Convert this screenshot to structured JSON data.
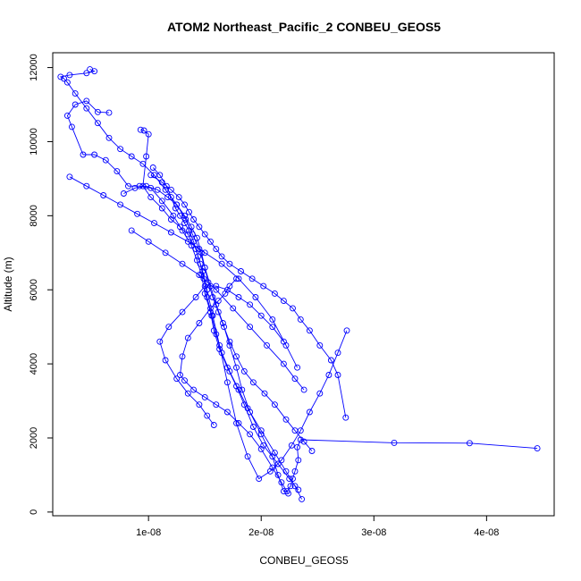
{
  "chart_data": {
    "type": "scatter",
    "title": "ATOM2 Northeast_Pacific_2 CONBEU_GEOS5",
    "xlabel": "CONBEU_GEOS5",
    "ylabel": "Altitude (m)",
    "xlim": [
      1.5e-09,
      4.6e-08
    ],
    "ylim": [
      -100,
      12400
    ],
    "x_ticks": [
      {
        "value": 1e-08,
        "label": "1e-08"
      },
      {
        "value": 2e-08,
        "label": "2e-08"
      },
      {
        "value": 3e-08,
        "label": "3e-08"
      },
      {
        "value": 4e-08,
        "label": "4e-08"
      }
    ],
    "y_ticks": [
      {
        "value": 0,
        "label": "0"
      },
      {
        "value": 2000,
        "label": "2000"
      },
      {
        "value": 4000,
        "label": "4000"
      },
      {
        "value": 6000,
        "label": "6000"
      },
      {
        "value": 8000,
        "label": "8000"
      },
      {
        "value": 10000,
        "label": "10000"
      },
      {
        "value": 12000,
        "label": "12000"
      }
    ],
    "marker": "open-circle",
    "connected": true,
    "grid": false,
    "color": "#0000ff",
    "series": [
      {
        "x": [
          4.45e-08,
          3.85e-08,
          3.18e-08,
          2.35e-08,
          2.32e-08,
          2.33e-08,
          2.3e-08,
          2.28e-08,
          2.26e-08,
          2.23e-08,
          2.2e-08,
          2.15e-08,
          2.1e-08,
          2e-08,
          1.9e-08,
          1.83e-08,
          1.78e-08,
          1.72e-08,
          1.66e-08,
          1.6e-08,
          1.55e-08,
          1.5e-08,
          1.45e-08,
          1.39e-08,
          1.33e-08,
          1.25e-08,
          1.15e-08,
          1.05e-08,
          9.5e-09,
          8.5e-09,
          7.5e-09,
          6.5e-09,
          5.5e-09,
          4.5e-09,
          3.5e-09,
          2.8e-09,
          2.5e-09,
          2.2e-09,
          3e-09,
          4.5e-09,
          5.2e-09,
          4.8e-09
        ],
        "y": [
          1720,
          1860,
          1870,
          1950,
          1750,
          1400,
          1100,
          900,
          700,
          560,
          560,
          1000,
          1500,
          2100,
          2700,
          3300,
          3900,
          4500,
          5100,
          5600,
          6100,
          6600,
          7100,
          7500,
          7900,
          8300,
          8700,
          9100,
          9400,
          9600,
          9800,
          10100,
          10500,
          10900,
          11300,
          11600,
          11700,
          11750,
          11800,
          11850,
          11900,
          11950
        ]
      },
      {
        "x": [
          2.33e-08,
          2.25e-08,
          2.15e-08,
          2.02e-08,
          1.93e-08,
          1.85e-08,
          1.78e-08,
          1.7e-08,
          1.63e-08,
          1.58e-08,
          1.55e-08,
          1.5e-08,
          1.47e-08,
          1.43e-08,
          1.38e-08,
          1.3e-08,
          1.22e-08,
          1.12e-08,
          1.02e-08,
          9.2e-09,
          8.2e-09,
          7.2e-09,
          6.2e-09,
          5.2e-09,
          4.2e-09,
          3.2e-09,
          2.8e-09,
          3.5e-09,
          4.5e-09,
          5.5e-09,
          6.5e-09
        ],
        "y": [
          600,
          900,
          1300,
          1800,
          2300,
          2900,
          3400,
          3900,
          4400,
          4900,
          5400,
          5900,
          6400,
          6800,
          7200,
          7600,
          8000,
          8400,
          8750,
          8800,
          8800,
          9200,
          9500,
          9650,
          9650,
          10400,
          10700,
          11000,
          11100,
          10800,
          10780
        ]
      },
      {
        "x": [
          2.36e-08,
          2.3e-08,
          2.22e-08,
          2.12e-08,
          2e-08,
          1.88e-08,
          1.8e-08,
          1.72e-08,
          1.65e-08,
          1.6e-08,
          1.56e-08,
          1.52e-08,
          1.49e-08,
          1.46e-08,
          1.42e-08,
          1.35e-08,
          1.28e-08,
          1.2e-08,
          1.12e-08,
          1.02e-08,
          9.5e-09,
          9.8e-09,
          1e-08,
          9.6e-09,
          9.3e-09
        ],
        "y": [
          350,
          700,
          1100,
          1600,
          2200,
          2800,
          3300,
          3800,
          4300,
          4800,
          5300,
          5800,
          6300,
          6700,
          7100,
          7500,
          7700,
          7900,
          8200,
          8500,
          8800,
          9600,
          10200,
          10300,
          10320
        ]
      },
      {
        "x": [
          2.76e-08,
          2.68e-08,
          2.6e-08,
          2.52e-08,
          2.43e-08,
          2.35e-08,
          2.27e-08,
          2.18e-08,
          2.08e-08,
          1.98e-08,
          1.88e-08,
          1.78e-08,
          1.7e-08,
          1.63e-08,
          1.57e-08,
          1.52e-08,
          1.48e-08,
          1.44e-08,
          1.4e-08,
          1.36e-08,
          1.32e-08,
          1.28e-08,
          1.24e-08,
          1.2e-08,
          1.16e-08,
          1.1e-08,
          1.04e-08
        ],
        "y": [
          4900,
          4300,
          3700,
          3200,
          2700,
          2200,
          1800,
          1400,
          1100,
          900,
          1500,
          2400,
          3500,
          4500,
          5300,
          6000,
          6500,
          6900,
          7300,
          7600,
          7800,
          8000,
          8200,
          8500,
          8800,
          9100,
          9300
        ]
      },
      {
        "x": [
          2.75e-08,
          2.68e-08,
          2.62e-08,
          2.52e-08,
          2.43e-08,
          2.35e-08,
          2.28e-08,
          2.2e-08,
          2.12e-08,
          2.02e-08,
          1.92e-08,
          1.82e-08,
          1.72e-08,
          1.65e-08,
          1.6e-08,
          1.55e-08,
          1.5e-08,
          1.45e-08,
          1.4e-08,
          1.36e-08,
          1.32e-08,
          1.27e-08,
          1.2e-08,
          1.12e-08,
          1.02e-08
        ],
        "y": [
          2550,
          3700,
          4100,
          4500,
          4900,
          5200,
          5500,
          5700,
          5900,
          6100,
          6300,
          6500,
          6700,
          6900,
          7100,
          7300,
          7500,
          7700,
          7900,
          8100,
          8300,
          8500,
          8700,
          8900,
          9100
        ]
      },
      {
        "x": [
          2.45e-08,
          2.38e-08,
          2.3e-08,
          2.22e-08,
          2.12e-08,
          2.03e-08,
          1.93e-08,
          1.85e-08,
          1.78e-08,
          1.72e-08,
          1.67e-08,
          1.62e-08,
          1.57e-08,
          1.53e-08,
          1.5e-08,
          1.47e-08,
          1.43e-08,
          1.38e-08,
          1.32e-08,
          1.25e-08,
          1.17e-08,
          1.08e-08,
          9.8e-09,
          8.8e-09,
          7.8e-09
        ],
        "y": [
          1650,
          1900,
          2200,
          2500,
          2900,
          3200,
          3500,
          3800,
          4200,
          4600,
          5000,
          5400,
          5800,
          6200,
          6600,
          7000,
          7400,
          7700,
          8000,
          8300,
          8500,
          8700,
          8800,
          8750,
          8600
        ]
      },
      {
        "x": [
          2.24e-08,
          2.18e-08,
          2.1e-08,
          2e-08,
          1.9e-08,
          1.8e-08,
          1.7e-08,
          1.6e-08,
          1.5e-08,
          1.4e-08,
          1.32e-08,
          1.28e-08,
          1.3e-08,
          1.35e-08,
          1.45e-08,
          1.55e-08,
          1.62e-08,
          1.68e-08,
          1.72e-08,
          1.78e-08
        ],
        "y": [
          500,
          800,
          1200,
          1700,
          2100,
          2400,
          2700,
          2900,
          3100,
          3300,
          3550,
          3700,
          4200,
          4700,
          5100,
          5500,
          5700,
          5900,
          6100,
          6300
        ]
      },
      {
        "x": [
          1.58e-08,
          1.52e-08,
          1.45e-08,
          1.35e-08,
          1.25e-08,
          1.15e-08,
          1.1e-08,
          1.18e-08,
          1.3e-08,
          1.42e-08,
          1.5e-08,
          1.6e-08,
          1.7e-08,
          1.8e-08,
          1.9e-08,
          2e-08,
          2.1e-08,
          2.2e-08
        ],
        "y": [
          2350,
          2600,
          2900,
          3200,
          3600,
          4100,
          4600,
          5000,
          5400,
          5800,
          6100,
          6100,
          6000,
          5800,
          5600,
          5300,
          5000,
          4600
        ]
      },
      {
        "x": [
          8.5e-09,
          1e-08,
          1.15e-08,
          1.3e-08,
          1.45e-08,
          1.6e-08,
          1.75e-08,
          1.9e-08,
          2.05e-08,
          2.2e-08,
          2.3e-08,
          2.38e-08
        ],
        "y": [
          7600,
          7300,
          7000,
          6700,
          6400,
          6000,
          5500,
          5000,
          4500,
          4000,
          3600,
          3300
        ]
      },
      {
        "x": [
          3e-09,
          4.5e-09,
          6e-09,
          7.5e-09,
          9e-09,
          1.05e-08,
          1.2e-08,
          1.35e-08,
          1.5e-08,
          1.65e-08,
          1.8e-08,
          1.95e-08,
          2.1e-08,
          2.22e-08,
          2.32e-08
        ],
        "y": [
          9050,
          8800,
          8550,
          8300,
          8050,
          7800,
          7550,
          7300,
          7000,
          6700,
          6300,
          5800,
          5200,
          4500,
          3900
        ]
      }
    ]
  }
}
